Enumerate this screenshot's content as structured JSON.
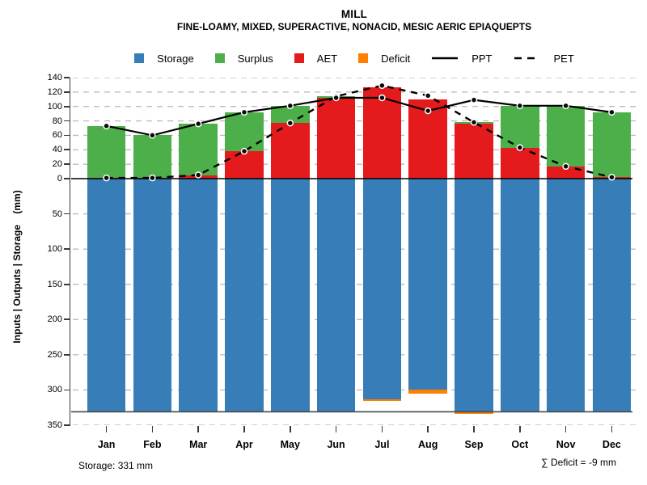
{
  "title": "MILL",
  "subtitle": "FINE-LOAMY, MIXED, SUPERACTIVE, NONACID, MESIC AERIC EPIAQUEPTS",
  "colors": {
    "storage": "#377EB8",
    "surplus": "#4DAF4A",
    "aet": "#E41A1C",
    "deficit": "#FF7F00",
    "line": "#000000",
    "grid": "#bdbdbd",
    "capacity_line": "#4a4a4a"
  },
  "legend": [
    {
      "label": "Storage",
      "swatch": "square",
      "color": "#377EB8"
    },
    {
      "label": "Surplus",
      "swatch": "square",
      "color": "#4DAF4A"
    },
    {
      "label": "AET",
      "swatch": "square",
      "color": "#E41A1C"
    },
    {
      "label": "Deficit",
      "swatch": "square",
      "color": "#FF7F00"
    },
    {
      "label": "PPT",
      "swatch": "line-solid",
      "color": "#000000"
    },
    {
      "label": "PET",
      "swatch": "line-dashed",
      "color": "#000000"
    }
  ],
  "chart_data": {
    "type": "bar+line (monthly water balance; stacked AET/Surplus bars above zero, Storage bars on inverted axis below zero, Deficit tips in orange, PPT solid line, PET dashed line)",
    "categories": [
      "Jan",
      "Feb",
      "Mar",
      "Apr",
      "May",
      "Jun",
      "Jul",
      "Aug",
      "Sep",
      "Oct",
      "Nov",
      "Dec"
    ],
    "series": [
      {
        "name": "PPT",
        "values": [
          73,
          60,
          76,
          92,
          101,
          112,
          112,
          94,
          109,
          101,
          101,
          92
        ]
      },
      {
        "name": "PET",
        "values": [
          1,
          1,
          5,
          38,
          77,
          114,
          129,
          115,
          78,
          43,
          17,
          2
        ]
      },
      {
        "name": "AET",
        "values": [
          1,
          1,
          5,
          38,
          77,
          112,
          127,
          110,
          76,
          43,
          17,
          2
        ]
      },
      {
        "name": "Surplus",
        "values": [
          72,
          59,
          71,
          54,
          24,
          2,
          0,
          0,
          2,
          58,
          84,
          90
        ]
      },
      {
        "name": "Deficit",
        "values": [
          0,
          0,
          0,
          0,
          0,
          0,
          2,
          5,
          2,
          0,
          0,
          0
        ]
      },
      {
        "name": "Storage",
        "values": [
          331,
          331,
          331,
          331,
          331,
          331,
          313,
          300,
          331,
          331,
          331,
          331
        ]
      }
    ],
    "axis": {
      "ylabel": "Inputs | Outputs | Storage    (mm)",
      "upper_ticks": [
        0,
        20,
        40,
        60,
        80,
        100,
        120,
        140
      ],
      "lower_ticks": [
        50,
        100,
        150,
        200,
        250,
        300,
        350
      ],
      "upper_range": [
        0,
        140
      ],
      "lower_range_inverted": [
        0,
        350
      ],
      "storage_capacity": 331,
      "grid": true,
      "legend_position": "top"
    }
  },
  "footer": {
    "storage_note": "Storage: 331 mm",
    "deficit_note": "∑ Deficit = -9 mm"
  }
}
